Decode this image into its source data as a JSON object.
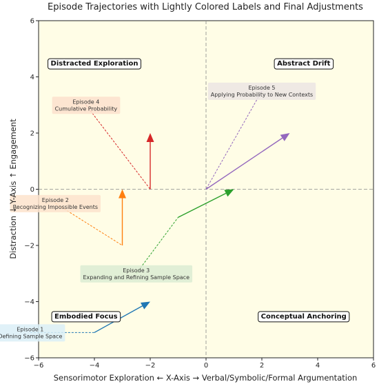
{
  "chart_data": {
    "type": "line",
    "title": "Episode Trajectories with Lightly Colored Labels and Final Adjustments",
    "xlabel": "Sensorimotor Exploration  ←   X-Axis   →  Verbal/Symbolic/Formal Argumentation",
    "ylabel": "Distraction  ↓   Y-Axis   ↑  Engagement",
    "xlim": [
      -6,
      6
    ],
    "ylim": [
      -6,
      6
    ],
    "xticks": [
      -6,
      -4,
      -2,
      0,
      2,
      4,
      6
    ],
    "yticks": [
      -6,
      -4,
      -2,
      0,
      2,
      4,
      6
    ],
    "xtick_labels": [
      "−6",
      "−4",
      "−2",
      "0",
      "2",
      "4",
      "6"
    ],
    "ytick_labels": [
      "−6",
      "−4",
      "−2",
      "0",
      "2",
      "4",
      "6"
    ],
    "background": "#fffde6",
    "reference_lines": {
      "x": 0,
      "y": 0
    },
    "quadrant_labels": [
      {
        "text": "Distracted Exploration",
        "x": -4,
        "y": 4.5
      },
      {
        "text": "Abstract Drift",
        "x": 3.5,
        "y": 4.5
      },
      {
        "text": "Embodied Focus",
        "x": -4.3,
        "y": -4.5
      },
      {
        "text": "Conceptual Anchoring",
        "x": 3.5,
        "y": -4.5
      }
    ],
    "series": [
      {
        "label_text": "Episode 1\nDefining Sample Space",
        "color": "#1f77b4",
        "label_bg": "#dbeef7",
        "label_at": [
          -6.3,
          -5.1
        ],
        "path": [
          [
            -6.3,
            -5.1
          ],
          [
            -4,
            -5.1
          ]
        ],
        "arrow": {
          "from": [
            -4,
            -5.1
          ],
          "to": [
            -2,
            -4
          ]
        }
      },
      {
        "label_text": "Episode 2\nRecognizing Impossible Events",
        "color": "#ff7f0e",
        "label_bg": "#fde3cc",
        "label_at": [
          -5.4,
          -0.5
        ],
        "path": [
          [
            -5.4,
            -0.5
          ],
          [
            -3,
            -2
          ]
        ],
        "arrow": {
          "from": [
            -3,
            -2
          ],
          "to": [
            -3,
            0
          ]
        }
      },
      {
        "label_text": "Episode 3\nExpanding and Refining Sample Space",
        "color": "#2ca02c",
        "label_bg": "#dcecd2",
        "label_at": [
          -2.5,
          -3
        ],
        "path": [
          [
            -2.5,
            -3
          ],
          [
            -1,
            -1
          ]
        ],
        "arrow": {
          "from": [
            -1,
            -1
          ],
          "to": [
            1,
            0
          ]
        }
      },
      {
        "label_text": "Episode 4\nCumulative Probability",
        "color": "#d62728",
        "label_bg": "#fde0cc",
        "label_at": [
          -4.3,
          3
        ],
        "path": [
          [
            -4.3,
            3
          ],
          [
            -2,
            0
          ]
        ],
        "arrow": {
          "from": [
            -2,
            0
          ],
          "to": [
            -2,
            2
          ]
        }
      },
      {
        "label_text": "Episode 5\nApplying Probability to New Contexts",
        "color": "#9467bd",
        "label_bg": "#ece5e3",
        "label_at": [
          2,
          3.5
        ],
        "path": [
          [
            2,
            3.5
          ],
          [
            0,
            0
          ]
        ],
        "arrow": {
          "from": [
            0,
            0
          ],
          "to": [
            3,
            2
          ]
        }
      }
    ]
  }
}
